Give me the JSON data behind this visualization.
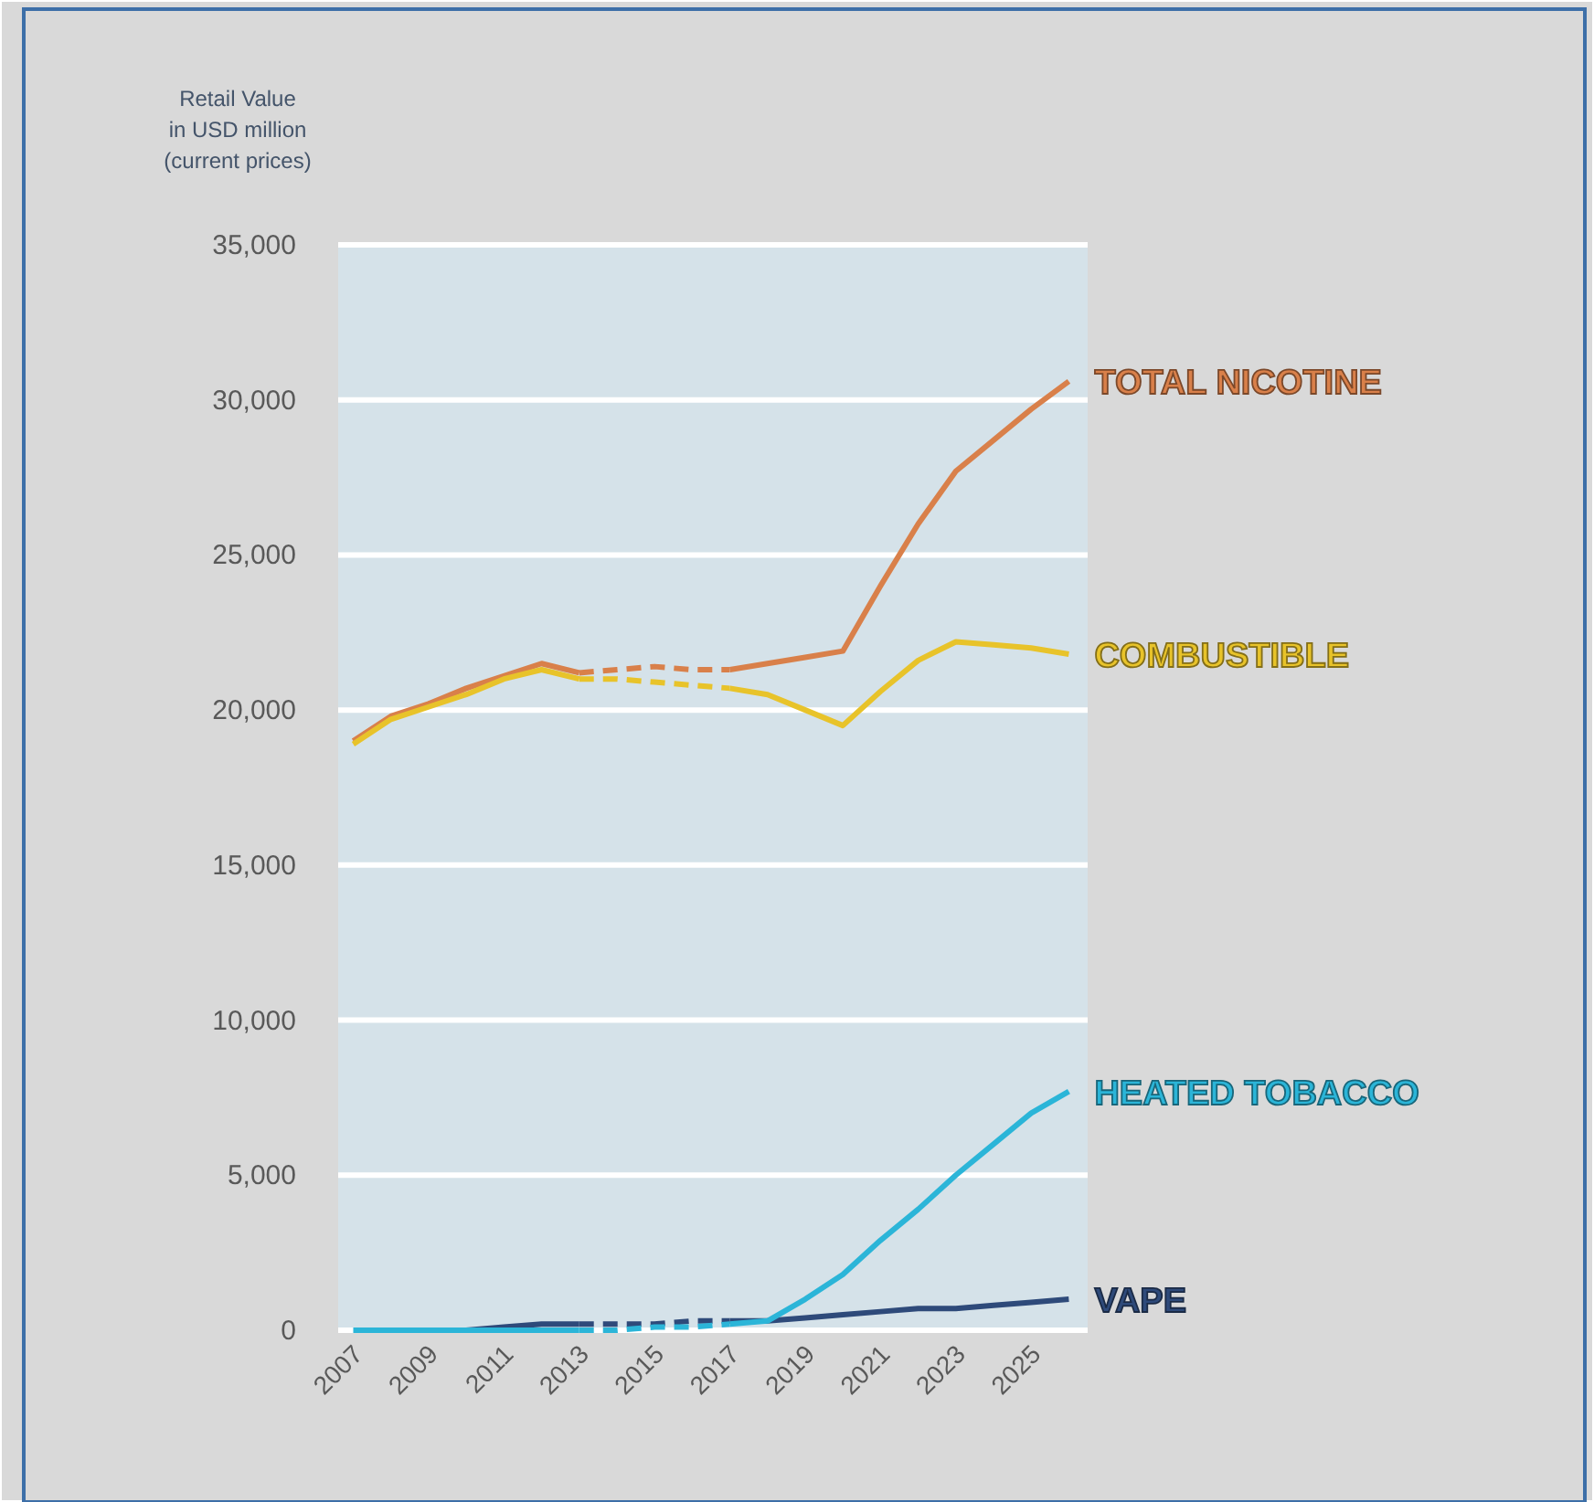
{
  "chart_data": {
    "type": "line",
    "ylabel": "Retail Value\nin USD million\n(current prices)",
    "xlim": [
      2006.6,
      2026.5
    ],
    "xticks": [
      2007,
      2009,
      2011,
      2013,
      2015,
      2017,
      2019,
      2021,
      2023,
      2025
    ],
    "ylim": [
      0,
      35000
    ],
    "yticks": [
      {
        "value": 0,
        "label": "0"
      },
      {
        "value": 5000,
        "label": "5,000"
      },
      {
        "value": 10000,
        "label": "10,000"
      },
      {
        "value": 15000,
        "label": "15,000"
      },
      {
        "value": 20000,
        "label": "20,000"
      },
      {
        "value": 25000,
        "label": "25,000"
      },
      {
        "value": 30000,
        "label": "30,000"
      },
      {
        "value": 35000,
        "label": "35,000"
      }
    ],
    "grid": "y",
    "legend": false,
    "series": [
      {
        "color": "#d9804a",
        "x": [
          2007,
          2008,
          2009,
          2010,
          2011,
          2012,
          2013
        ],
        "values": [
          19000,
          19800,
          20200,
          20700,
          21100,
          21500,
          21200
        ]
      },
      {
        "color": "#d9804a",
        "line_style": "dashed",
        "x": [
          2013,
          2014,
          2015,
          2016,
          2017
        ],
        "values": [
          21200,
          21300,
          21400,
          21300,
          21300
        ]
      },
      {
        "name": "TOTAL NICOTINE",
        "color": "#d9804a",
        "x": [
          2017,
          2018,
          2019,
          2020,
          2021,
          2022,
          2023,
          2024,
          2025,
          2026
        ],
        "values": [
          21300,
          21500,
          21700,
          21900,
          24000,
          26000,
          27700,
          28700,
          29700,
          30600
        ]
      },
      {
        "color": "#e8c32a",
        "x": [
          2007,
          2008,
          2009,
          2010,
          2011,
          2012,
          2013
        ],
        "values": [
          18900,
          19700,
          20100,
          20500,
          21000,
          21300,
          21000
        ]
      },
      {
        "color": "#e8c32a",
        "line_style": "dashed",
        "x": [
          2013,
          2014,
          2015,
          2016,
          2017
        ],
        "values": [
          21000,
          21000,
          20900,
          20800,
          20700
        ]
      },
      {
        "name": "COMBUSTIBLE",
        "color": "#e8c32a",
        "x": [
          2017,
          2018,
          2019,
          2020,
          2021,
          2022,
          2023,
          2024,
          2025,
          2026
        ],
        "values": [
          20700,
          20500,
          20000,
          19500,
          20600,
          21600,
          22200,
          22100,
          22000,
          21800
        ]
      },
      {
        "color": "#2e4a7a",
        "x": [
          2009,
          2010,
          2011,
          2012,
          2013
        ],
        "values": [
          0,
          0,
          100,
          200,
          200
        ]
      },
      {
        "color": "#2e4a7a",
        "line_style": "dashed",
        "x": [
          2013,
          2014,
          2015,
          2016,
          2017
        ],
        "values": [
          200,
          200,
          200,
          300,
          300
        ]
      },
      {
        "name": "VAPE",
        "color": "#2e4a7a",
        "x": [
          2017,
          2018,
          2019,
          2020,
          2021,
          2022,
          2023,
          2024,
          2025,
          2026
        ],
        "values": [
          300,
          300,
          400,
          500,
          600,
          700,
          700,
          800,
          900,
          1000
        ]
      },
      {
        "color": "#2bb5d8",
        "x": [
          2007,
          2008,
          2009,
          2010,
          2011,
          2012,
          2013
        ],
        "values": [
          0,
          0,
          0,
          0,
          0,
          0,
          0
        ]
      },
      {
        "color": "#2bb5d8",
        "line_style": "dashed",
        "x": [
          2013,
          2014,
          2015,
          2016,
          2017
        ],
        "values": [
          0,
          0,
          100,
          100,
          200
        ]
      },
      {
        "name": "HEATED TOBACCO",
        "color": "#2bb5d8",
        "x": [
          2017,
          2018,
          2019,
          2020,
          2021,
          2022,
          2023,
          2024,
          2025,
          2026
        ],
        "values": [
          200,
          300,
          1000,
          1800,
          2900,
          3900,
          5000,
          6000,
          7000,
          7700
        ]
      }
    ]
  }
}
